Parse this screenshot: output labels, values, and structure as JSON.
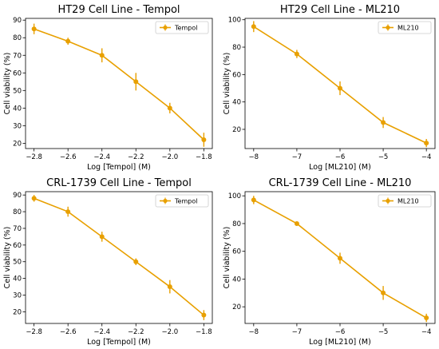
{
  "colors": {
    "series": "#E8A000",
    "axis": "#000000",
    "legend_border": "#cccccc"
  },
  "chart_data": [
    {
      "type": "line",
      "title": "HT29 Cell Line - Tempol",
      "xlabel": "Log [Tempol] (M)",
      "ylabel": "Cell viability (%)",
      "xlim": [
        -2.85,
        -1.75
      ],
      "ylim": [
        17,
        91
      ],
      "xticks": [
        -2.8,
        -2.6,
        -2.4,
        -2.2,
        -2.0,
        -1.8
      ],
      "xtick_labels": [
        "−2.8",
        "−2.6",
        "−2.4",
        "−2.2",
        "−2.0",
        "−1.8"
      ],
      "yticks": [
        20,
        30,
        40,
        50,
        60,
        70,
        80,
        90
      ],
      "ytick_labels": [
        "20",
        "30",
        "40",
        "50",
        "60",
        "70",
        "80",
        "90"
      ],
      "legend_position": "top-right",
      "grid": false,
      "series": [
        {
          "name": "Tempol",
          "x": [
            -2.8,
            -2.6,
            -2.4,
            -2.2,
            -2.0,
            -1.8
          ],
          "y": [
            85,
            78,
            70,
            55,
            40,
            22
          ],
          "err": [
            3,
            2,
            4,
            5,
            3,
            4
          ]
        }
      ]
    },
    {
      "type": "line",
      "title": "HT29 Cell Line - ML210",
      "xlabel": "Log [ML210] (M)",
      "ylabel": "Cell viability (%)",
      "xlim": [
        -8.2,
        -3.8
      ],
      "ylim": [
        6,
        101
      ],
      "xticks": [
        -8,
        -7,
        -6,
        -5,
        -4
      ],
      "xtick_labels": [
        "−8",
        "−7",
        "−6",
        "−5",
        "−4"
      ],
      "yticks": [
        20,
        40,
        60,
        80,
        100
      ],
      "ytick_labels": [
        "20",
        "40",
        "60",
        "80",
        "100"
      ],
      "legend_position": "top-right",
      "grid": false,
      "series": [
        {
          "name": "ML210",
          "x": [
            -8,
            -7,
            -6,
            -5,
            -4
          ],
          "y": [
            95,
            75,
            50,
            25,
            10
          ],
          "err": [
            4,
            3,
            5,
            4,
            3
          ]
        }
      ]
    },
    {
      "type": "line",
      "title": "CRL-1739 Cell Line - Tempol",
      "xlabel": "Log [Tempol] (M)",
      "ylabel": "Cell viability (%)",
      "xlim": [
        -2.85,
        -1.75
      ],
      "ylim": [
        13,
        92
      ],
      "xticks": [
        -2.8,
        -2.6,
        -2.4,
        -2.2,
        -2.0,
        -1.8
      ],
      "xtick_labels": [
        "−2.8",
        "−2.6",
        "−2.4",
        "−2.2",
        "−2.0",
        "−1.8"
      ],
      "yticks": [
        20,
        30,
        40,
        50,
        60,
        70,
        80,
        90
      ],
      "ytick_labels": [
        "20",
        "30",
        "40",
        "50",
        "60",
        "70",
        "80",
        "90"
      ],
      "legend_position": "top-right",
      "grid": false,
      "series": [
        {
          "name": "Tempol",
          "x": [
            -2.8,
            -2.6,
            -2.4,
            -2.2,
            -2.0,
            -1.8
          ],
          "y": [
            88,
            80,
            65,
            50,
            35,
            18
          ],
          "err": [
            2,
            3,
            3,
            2,
            4,
            3
          ]
        }
      ]
    },
    {
      "type": "line",
      "title": "CRL-1739 Cell Line - ML210",
      "xlabel": "Log [ML210] (M)",
      "ylabel": "Cell viability (%)",
      "xlim": [
        -8.2,
        -3.8
      ],
      "ylim": [
        8,
        103
      ],
      "xticks": [
        -8,
        -7,
        -6,
        -5,
        -4
      ],
      "xtick_labels": [
        "−8",
        "−7",
        "−6",
        "−5",
        "−4"
      ],
      "yticks": [
        20,
        40,
        60,
        80,
        100
      ],
      "ytick_labels": [
        "20",
        "40",
        "60",
        "80",
        "100"
      ],
      "legend_position": "top-right",
      "grid": false,
      "series": [
        {
          "name": "ML210",
          "x": [
            -8,
            -7,
            -6,
            -5,
            -4
          ],
          "y": [
            97,
            80,
            55,
            30,
            12
          ],
          "err": [
            3,
            1,
            4,
            5,
            3
          ]
        }
      ]
    }
  ]
}
